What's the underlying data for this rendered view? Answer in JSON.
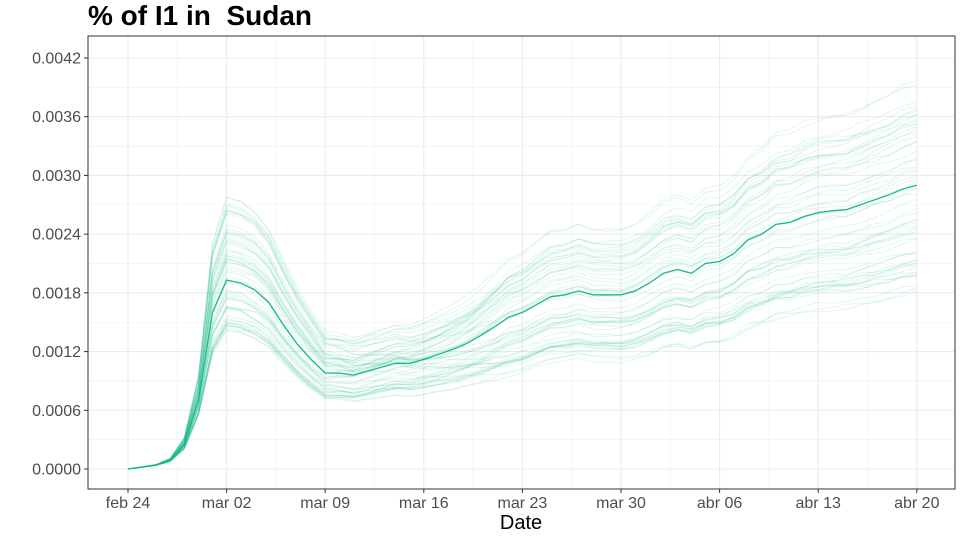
{
  "chart_data": {
    "type": "line",
    "title": "% of I1 in  Sudan",
    "xlabel": "Date",
    "ylabel": "",
    "x_ticks": [
      "feb 24",
      "mar 02",
      "mar 09",
      "mar 16",
      "mar 23",
      "mar 30",
      "abr 06",
      "abr 13",
      "abr 20"
    ],
    "x_tick_days": [
      0,
      7,
      14,
      21,
      28,
      35,
      42,
      49,
      56
    ],
    "y_ticks": [
      "0.0000",
      "0.0006",
      "0.0012",
      "0.0018",
      "0.0024",
      "0.0030",
      "0.0036",
      "0.0042"
    ],
    "xlim": [
      "feb 22",
      "abr 22"
    ],
    "ylim": [
      -0.0002,
      0.0044
    ],
    "grid": true,
    "series_color": "#19b88a",
    "highlight_series": {
      "x_day": [
        0,
        1,
        2,
        3,
        4,
        5,
        6,
        7,
        8,
        9,
        10,
        11,
        12,
        13,
        14,
        15,
        16,
        17,
        18,
        19,
        20,
        21,
        22,
        23,
        24,
        25,
        26,
        27,
        28,
        29,
        30,
        31,
        32,
        33,
        34,
        35,
        36,
        37,
        38,
        39,
        40,
        41,
        42,
        43,
        44,
        45,
        46,
        47,
        48,
        49,
        50,
        51,
        52,
        53,
        54,
        55,
        56
      ],
      "values": [
        0.0,
        2e-05,
        4e-05,
        9e-05,
        0.00025,
        0.0007,
        0.0016,
        0.00193,
        0.0019,
        0.00183,
        0.0017,
        0.00148,
        0.00128,
        0.00112,
        0.00098,
        0.00098,
        0.00096,
        0.001,
        0.00104,
        0.00108,
        0.00108,
        0.00112,
        0.00117,
        0.00122,
        0.00128,
        0.00136,
        0.00145,
        0.00155,
        0.0016,
        0.00168,
        0.00176,
        0.00178,
        0.00182,
        0.00178,
        0.00178,
        0.00178,
        0.00182,
        0.0019,
        0.002,
        0.00204,
        0.002,
        0.0021,
        0.00212,
        0.0022,
        0.00234,
        0.0024,
        0.0025,
        0.00252,
        0.00258,
        0.00262,
        0.00264,
        0.00265,
        0.0027,
        0.00275,
        0.0028,
        0.00286,
        0.0029
      ]
    }
  }
}
